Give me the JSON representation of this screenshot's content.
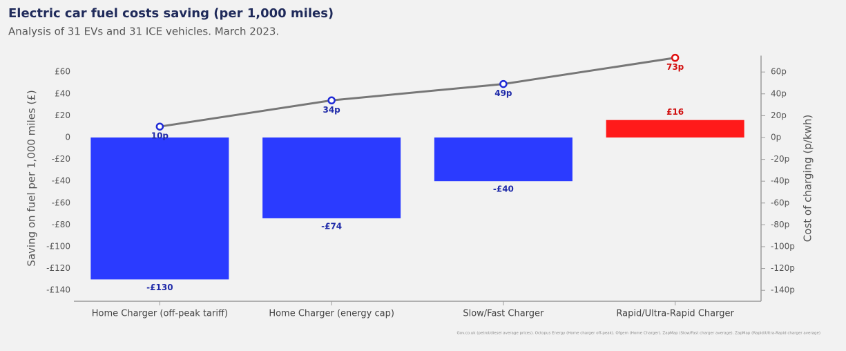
{
  "chart_data": {
    "type": "bar-line",
    "title": "Electric car fuel costs saving (per 1,000 miles)",
    "subtitle": "Analysis of 31 EVs and 31 ICE vehicles. March 2023.",
    "y_label": "Saving on fuel per 1,000 miles (£)",
    "y2_label": "Cost of charging (p/kwh)",
    "source": "Gov.co.uk (petrol/diesel average prices). Octopus Energy (Home charger off-peak). Ofgem (Home Charger). ZapMap (Slow/Fast charger average). ZapMap (Rapid/Ultra-Rapid charger average)",
    "categories": [
      "Home Charger (off-peak tariff)",
      "Home Charger (energy cap)",
      "Slow/Fast Charger",
      "Rapid/Ultra-Rapid Charger"
    ],
    "series": [
      {
        "type": "bar",
        "values": [
          -130,
          -74,
          -40,
          16
        ],
        "value_labels": [
          "-£130",
          "-£74",
          "-£40",
          "£16"
        ],
        "colors": [
          "#2b3bff",
          "#2b3bff",
          "#2b3bff",
          "#ff1a1a"
        ],
        "label_colors": [
          "#1f2aa8",
          "#1f2aa8",
          "#1f2aa8",
          "#d10f0f"
        ]
      },
      {
        "type": "line",
        "axis": "y2",
        "values": [
          10,
          34,
          49,
          73
        ],
        "value_labels": [
          "10p",
          "34p",
          "49p",
          "73p"
        ],
        "color": "#777777",
        "marker_colors": [
          "#1f2ad6",
          "#1f2ad6",
          "#1f2ad6",
          "#e01010"
        ],
        "label_colors": [
          "#1f2aa8",
          "#1f2aa8",
          "#1f2aa8",
          "#d10f0f"
        ]
      }
    ],
    "ylim": [
      -150,
      75
    ],
    "yticks": [
      {
        "value": 60,
        "label": "£60"
      },
      {
        "value": 40,
        "label": "£40"
      },
      {
        "value": 20,
        "label": "£20"
      },
      {
        "value": 0,
        "label": "0"
      },
      {
        "value": -20,
        "label": "-£20"
      },
      {
        "value": -40,
        "label": "-£40"
      },
      {
        "value": -60,
        "label": "-£60"
      },
      {
        "value": -80,
        "label": "-£80"
      },
      {
        "value": -100,
        "label": "-£100"
      },
      {
        "value": -120,
        "label": "-£120"
      },
      {
        "value": -140,
        "label": "-£140"
      }
    ],
    "y2lim": [
      -150,
      75
    ],
    "y2ticks": [
      {
        "value": 60,
        "label": "60p"
      },
      {
        "value": 40,
        "label": "40p"
      },
      {
        "value": 20,
        "label": "20p"
      },
      {
        "value": 0,
        "label": "0p"
      },
      {
        "value": -20,
        "label": "-20p"
      },
      {
        "value": -40,
        "label": "-40p"
      },
      {
        "value": -60,
        "label": "-60p"
      },
      {
        "value": -80,
        "label": "-80p"
      },
      {
        "value": -100,
        "label": "-100p"
      },
      {
        "value": -120,
        "label": "-120p"
      },
      {
        "value": -140,
        "label": "-140p"
      }
    ]
  }
}
